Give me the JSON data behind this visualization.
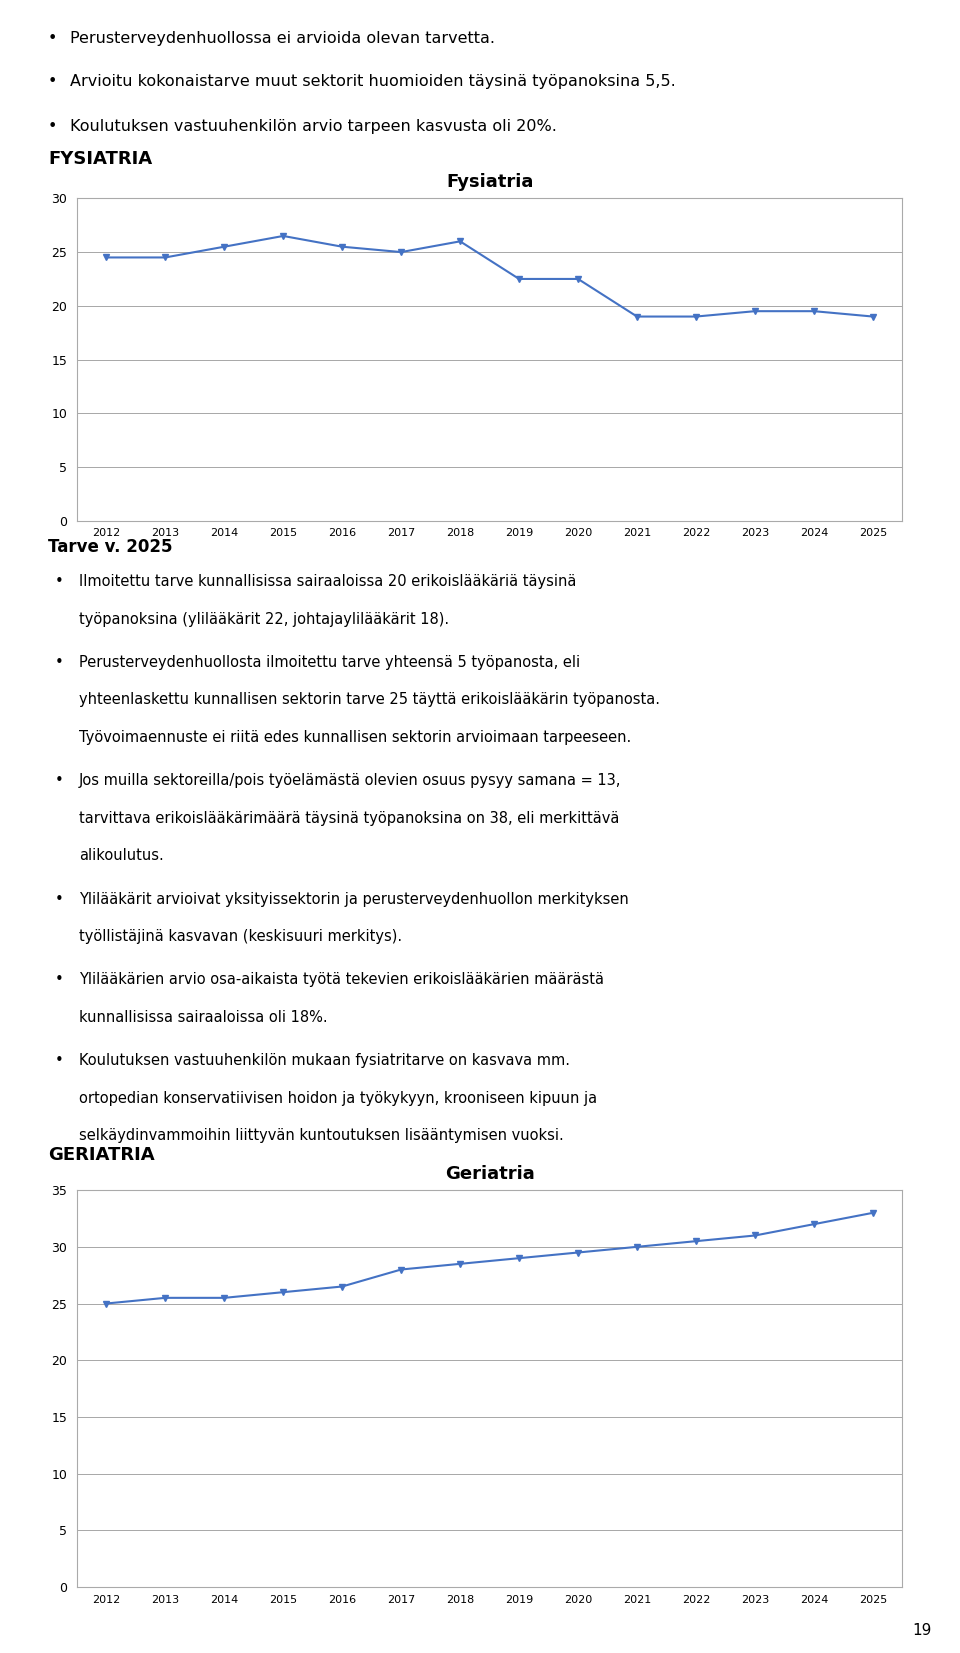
{
  "bullet_points_top": [
    "Perusterveydenhuollossa ei arvioida olevan tarvetta.",
    "Arvioitu kokonaistarve muut sektorit huomioiden täysinä työpanoksina 5,5.",
    "Koulutuksen vastuuhenkilön arvio tarpeen kasvusta oli 20%."
  ],
  "section1_title": "FYSIATRIA",
  "chart1_title": "Fysiatria",
  "chart1_data_x": [
    2012,
    2013,
    2014,
    2015,
    2016,
    2017,
    2018,
    2019,
    2020,
    2021,
    2022,
    2023,
    2024,
    2025
  ],
  "chart1_data_y": [
    24.5,
    24.5,
    25.5,
    26.5,
    25.5,
    25.0,
    26.0,
    22.5,
    22.5,
    19.0,
    19.0,
    19.5,
    19.5,
    19.0
  ],
  "chart1_ylim": [
    0,
    30
  ],
  "chart1_yticks": [
    0,
    5,
    10,
    15,
    20,
    25,
    30
  ],
  "chart1_color": "#4472C4",
  "tarve_title": "Tarve v. 2025",
  "tarve_bullets": [
    "Ilmoitettu tarve kunnallisissa sairaaloissa 20 erikoislääkäriä täysinä työpanoksina (ylilääkärit 22, johtajaylilääkärit 18).",
    "Perusterveydenhuollosta ilmoitettu tarve yhteensä 5 työpanosta, eli yhteenlaskettu kunnallisen sektorin tarve 25 täyttä erikoislääkärin työpanosta.\nTyövoimaennuste ei riitä edes kunnallisen sektorin arvioimaan tarpeeseen.",
    "Jos muilla sektoreilla/pois työelämästä olevien osuus pysyy samana = 13, tarvittava erikoislääkärimäärä täysinä työpanoksina on 38, eli merkittävä alikoulutus.",
    "Ylilääkärit arvioivat yksityissektorin ja perusterveydenhuollon merkityksen työllistäjinä kasvavan (keskisuuri merkitys).",
    "Ylilääkärien arvio osa-aikaista työtä tekevien erikoislääkärien määrästä kunnallisissa sairaaloissa oli 18%.",
    "Koulutuksen vastuuhenkilön mukaan fysiatritarve on kasvava mm. ortopedian konservatiivisen hoidon ja työkykyyn, krooniseen kipuun ja selkäydinvammoihin liittyvän kuntoutuksen lisääntymisen vuoksi."
  ],
  "section2_title": "GERIATRIA",
  "chart2_title": "Geriatria",
  "chart2_data_x": [
    2012,
    2013,
    2014,
    2015,
    2016,
    2017,
    2018,
    2019,
    2020,
    2021,
    2022,
    2023,
    2024,
    2025
  ],
  "chart2_data_y": [
    25.0,
    25.5,
    25.5,
    26.0,
    26.5,
    28.0,
    28.5,
    29.0,
    29.5,
    30.0,
    30.5,
    31.0,
    32.0,
    33.0
  ],
  "chart2_ylim": [
    0,
    35
  ],
  "chart2_yticks": [
    0,
    5,
    10,
    15,
    20,
    25,
    30,
    35
  ],
  "chart2_color": "#4472C4",
  "page_number": "19",
  "line_color": "#999999",
  "background_color": "#ffffff",
  "text_color": "#000000",
  "chart_border_color": "#aaaaaa"
}
